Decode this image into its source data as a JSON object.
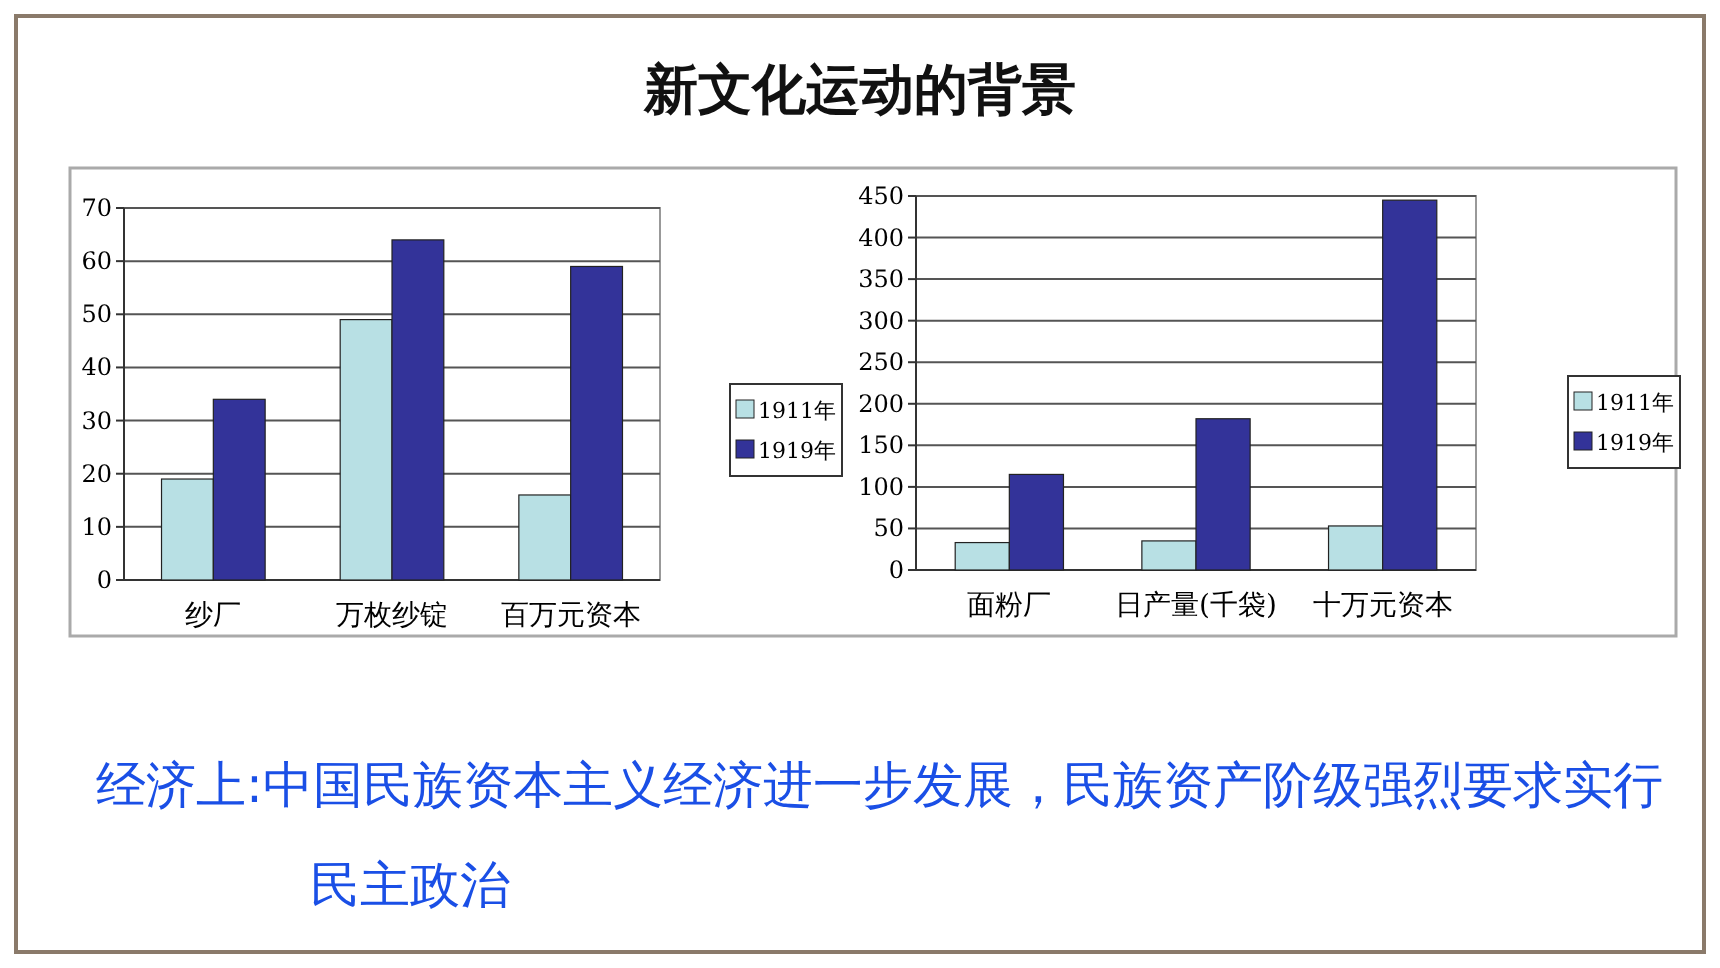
{
  "chart_data": [
    {
      "type": "bar",
      "title": "新文化运动的背景",
      "annotations": [
        "经济上:中国民族资本主义经济进一步发展，民族资产阶级强烈要求实行民主政治"
      ],
      "categories": [
        "纱厂",
        "万枚纱锭",
        "百万元资本"
      ],
      "series": [
        {
          "name": "1911年",
          "color": "#b8e0e4",
          "values": [
            19,
            49,
            16
          ]
        },
        {
          "name": "1919年",
          "color": "#333399",
          "values": [
            34,
            64,
            59
          ]
        }
      ],
      "ylim": [
        0,
        70
      ],
      "yticks": [
        0,
        10,
        20,
        30,
        40,
        50,
        60,
        70
      ],
      "grid": "y",
      "legend": "right"
    },
    {
      "type": "bar",
      "categories": [
        "面粉厂",
        "日产量(千袋)",
        "十万元资本"
      ],
      "series": [
        {
          "name": "1911年",
          "color": "#b8e0e4",
          "values": [
            33,
            35,
            53
          ]
        },
        {
          "name": "1919年",
          "color": "#333399",
          "values": [
            115,
            182,
            445
          ]
        }
      ],
      "ylim": [
        0,
        450
      ],
      "yticks": [
        0,
        50,
        100,
        150,
        200,
        250,
        300,
        350,
        400,
        450
      ],
      "grid": "y",
      "legend": "right"
    }
  ]
}
